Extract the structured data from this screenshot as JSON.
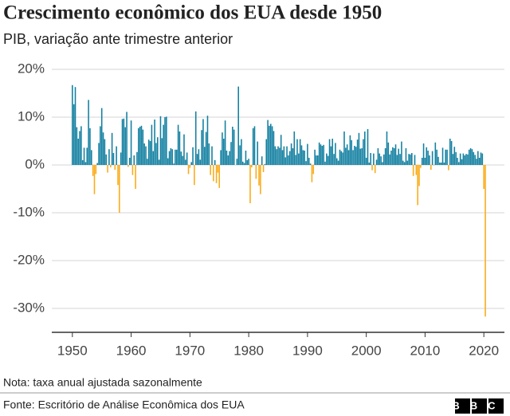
{
  "chart_data": {
    "type": "bar",
    "title": "Crescimento econômico dos EUA desde 1950",
    "subtitle": "PIB, variação ante trimestre anterior",
    "note": "Nota: taxa anual ajustada sazonalmente",
    "source": "Fonte: Escritório de Análise Econômica dos EUA",
    "logo": "BBC",
    "positive_color": "#1380a1",
    "negative_color": "#faab18",
    "grid": true,
    "xlim": [
      1946.5,
      2023.5
    ],
    "xticks": [
      1950,
      1960,
      1970,
      1980,
      1990,
      2000,
      2010,
      2020
    ],
    "ylim": [
      -35,
      22
    ],
    "yticks": [
      {
        "value": 20,
        "label": "20%"
      },
      {
        "value": 10,
        "label": "10%"
      },
      {
        "value": 0,
        "label": "0%"
      },
      {
        "value": -10,
        "label": "-10%"
      },
      {
        "value": -20,
        "label": "-20%"
      },
      {
        "value": -30,
        "label": "-30%"
      }
    ],
    "x": [
      1950,
      1950.25,
      1950.5,
      1950.75,
      1951,
      1951.25,
      1951.5,
      1951.75,
      1952,
      1952.25,
      1952.5,
      1952.75,
      1953,
      1953.25,
      1953.5,
      1953.75,
      1954,
      1954.25,
      1954.5,
      1954.75,
      1955,
      1955.25,
      1955.5,
      1955.75,
      1956,
      1956.25,
      1956.5,
      1956.75,
      1957,
      1957.25,
      1957.5,
      1957.75,
      1958,
      1958.25,
      1958.5,
      1958.75,
      1959,
      1959.25,
      1959.5,
      1959.75,
      1960,
      1960.25,
      1960.5,
      1960.75,
      1961,
      1961.25,
      1961.5,
      1961.75,
      1962,
      1962.25,
      1962.5,
      1962.75,
      1963,
      1963.25,
      1963.5,
      1963.75,
      1964,
      1964.25,
      1964.5,
      1964.75,
      1965,
      1965.25,
      1965.5,
      1965.75,
      1966,
      1966.25,
      1966.5,
      1966.75,
      1967,
      1967.25,
      1967.5,
      1967.75,
      1968,
      1968.25,
      1968.5,
      1968.75,
      1969,
      1969.25,
      1969.5,
      1969.75,
      1970,
      1970.25,
      1970.5,
      1970.75,
      1971,
      1971.25,
      1971.5,
      1971.75,
      1972,
      1972.25,
      1972.5,
      1972.75,
      1973,
      1973.25,
      1973.5,
      1973.75,
      1974,
      1974.25,
      1974.5,
      1974.75,
      1975,
      1975.25,
      1975.5,
      1975.75,
      1976,
      1976.25,
      1976.5,
      1976.75,
      1977,
      1977.25,
      1977.5,
      1977.75,
      1978,
      1978.25,
      1978.5,
      1978.75,
      1979,
      1979.25,
      1979.5,
      1979.75,
      1980,
      1980.25,
      1980.5,
      1980.75,
      1981,
      1981.25,
      1981.5,
      1981.75,
      1982,
      1982.25,
      1982.5,
      1982.75,
      1983,
      1983.25,
      1983.5,
      1983.75,
      1984,
      1984.25,
      1984.5,
      1984.75,
      1985,
      1985.25,
      1985.5,
      1985.75,
      1986,
      1986.25,
      1986.5,
      1986.75,
      1987,
      1987.25,
      1987.5,
      1987.75,
      1988,
      1988.25,
      1988.5,
      1988.75,
      1989,
      1989.25,
      1989.5,
      1989.75,
      1990,
      1990.25,
      1990.5,
      1990.75,
      1991,
      1991.25,
      1991.5,
      1991.75,
      1992,
      1992.25,
      1992.5,
      1992.75,
      1993,
      1993.25,
      1993.5,
      1993.75,
      1994,
      1994.25,
      1994.5,
      1994.75,
      1995,
      1995.25,
      1995.5,
      1995.75,
      1996,
      1996.25,
      1996.5,
      1996.75,
      1997,
      1997.25,
      1997.5,
      1997.75,
      1998,
      1998.25,
      1998.5,
      1998.75,
      1999,
      1999.25,
      1999.5,
      1999.75,
      2000,
      2000.25,
      2000.5,
      2000.75,
      2001,
      2001.25,
      2001.5,
      2001.75,
      2002,
      2002.25,
      2002.5,
      2002.75,
      2003,
      2003.25,
      2003.5,
      2003.75,
      2004,
      2004.25,
      2004.5,
      2004.75,
      2005,
      2005.25,
      2005.5,
      2005.75,
      2006,
      2006.25,
      2006.5,
      2006.75,
      2007,
      2007.25,
      2007.5,
      2007.75,
      2008,
      2008.25,
      2008.5,
      2008.75,
      2009,
      2009.25,
      2009.5,
      2009.75,
      2010,
      2010.25,
      2010.5,
      2010.75,
      2011,
      2011.25,
      2011.5,
      2011.75,
      2012,
      2012.25,
      2012.5,
      2012.75,
      2013,
      2013.25,
      2013.5,
      2013.75,
      2014,
      2014.25,
      2014.5,
      2014.75,
      2015,
      2015.25,
      2015.5,
      2015.75,
      2016,
      2016.25,
      2016.5,
      2016.75,
      2017,
      2017.25,
      2017.5,
      2017.75,
      2018,
      2018.25,
      2018.5,
      2018.75,
      2019,
      2019.25,
      2019.5,
      2019.75,
      2020,
      2020.25
    ],
    "values": [
      16.7,
      12.7,
      16.3,
      7.9,
      5.5,
      7.1,
      8.1,
      1.0,
      3.6,
      0.6,
      3.6,
      13.6,
      7.7,
      3.1,
      -2.3,
      -6.1,
      -1.9,
      0.4,
      4.6,
      8.1,
      11.9,
      6.8,
      5.4,
      2.2,
      -1.6,
      3.3,
      -0.5,
      6.7,
      2.5,
      -1.0,
      3.9,
      -4.2,
      -10.0,
      2.6,
      9.6,
      9.7,
      7.9,
      11.1,
      -0.4,
      1.5,
      9.3,
      -2.1,
      2.0,
      -5.0,
      2.7,
      7.7,
      8.0,
      8.2,
      7.4,
      4.5,
      3.9,
      1.3,
      5.3,
      5.0,
      8.4,
      2.9,
      9.5,
      4.6,
      5.8,
      1.1,
      10.2,
      5.6,
      8.4,
      10.0,
      10.1,
      1.4,
      2.9,
      3.5,
      3.3,
      0.3,
      3.2,
      3.2,
      8.4,
      7.0,
      2.8,
      1.9,
      6.4,
      1.1,
      2.6,
      -1.9,
      -0.6,
      0.6,
      3.7,
      -4.2,
      11.2,
      2.3,
      3.3,
      1.1,
      7.3,
      9.6,
      3.8,
      6.9,
      10.3,
      4.5,
      -2.1,
      3.9,
      -3.4,
      1.0,
      -3.8,
      -1.6,
      -4.8,
      3.1,
      6.8,
      5.5,
      9.3,
      3.0,
      2.0,
      2.9,
      4.8,
      8.0,
      7.4,
      0.0,
      1.3,
      16.4,
      4.1,
      5.4,
      0.7,
      0.4,
      3.0,
      1.0,
      1.3,
      -8.0,
      -0.5,
      7.7,
      8.1,
      -2.9,
      4.9,
      -4.3,
      -6.1,
      1.8,
      -1.5,
      0.2,
      5.4,
      9.4,
      8.2,
      8.6,
      8.1,
      7.1,
      3.9,
      3.3,
      3.9,
      3.6,
      6.3,
      3.1,
      3.9,
      1.6,
      3.9,
      2.0,
      2.9,
      4.5,
      3.5,
      7.0,
      2.1,
      5.4,
      2.4,
      5.4,
      4.1,
      3.1,
      3.0,
      0.8,
      4.4,
      1.5,
      0.3,
      -3.6,
      -1.9,
      3.2,
      2.0,
      2.0,
      4.7,
      4.3,
      4.0,
      4.2,
      0.7,
      2.4,
      1.9,
      5.4,
      3.9,
      5.5,
      2.3,
      4.6,
      1.4,
      0.9,
      3.2,
      2.9,
      2.6,
      7.0,
      3.6,
      4.3,
      3.1,
      6.2,
      5.2,
      3.1,
      4.0,
      3.8,
      5.3,
      6.7,
      3.4,
      3.5,
      5.4,
      7.0,
      1.5,
      7.5,
      0.5,
      2.5,
      -1.1,
      2.4,
      -1.7,
      1.1,
      3.5,
      2.4,
      1.8,
      0.6,
      2.2,
      3.5,
      7.0,
      4.7,
      2.2,
      3.0,
      3.7,
      3.5,
      4.3,
      2.1,
      3.4,
      2.3,
      4.9,
      0.9,
      0.6,
      3.5,
      0.9,
      2.3,
      2.2,
      2.5,
      -2.3,
      2.1,
      -2.1,
      -8.4,
      -4.4,
      -0.6,
      1.5,
      4.5,
      1.5,
      3.7,
      3.0,
      2.0,
      -1.0,
      2.9,
      -0.1,
      4.7,
      3.2,
      1.7,
      0.5,
      0.5,
      3.6,
      0.5,
      3.2,
      3.2,
      -1.1,
      5.5,
      5.0,
      2.3,
      3.8,
      2.7,
      1.5,
      0.6,
      2.4,
      1.2,
      2.4,
      2.0,
      2.3,
      2.2,
      3.2,
      3.5,
      3.3,
      2.7,
      2.1,
      1.3,
      2.9,
      1.5,
      2.6,
      2.4,
      -5.0,
      -31.7
    ]
  }
}
